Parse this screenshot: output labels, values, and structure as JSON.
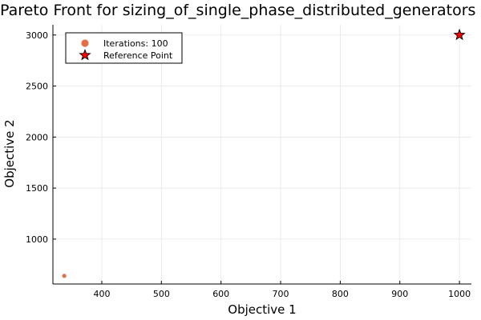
{
  "chart_data": {
    "type": "scatter",
    "title": "Pareto Front for sizing_of_single_phase_distributed_generators",
    "xlabel": "Objective 1",
    "ylabel": "Objective 2",
    "xlim": [
      318,
      1020
    ],
    "ylim": [
      560,
      3100
    ],
    "xticks": [
      400,
      500,
      600,
      700,
      800,
      900,
      1000
    ],
    "yticks": [
      1000,
      1500,
      2000,
      2500,
      3000
    ],
    "grid": true,
    "legend_position": "top-left",
    "series": [
      {
        "name": "Iterations: 100",
        "marker": "circle",
        "color": "#e26f46",
        "points": [
          {
            "x": 337,
            "y": 640
          }
        ]
      },
      {
        "name": "Reference Point",
        "marker": "star",
        "color": "#ff0000",
        "points": [
          {
            "x": 1000,
            "y": 3000
          }
        ]
      }
    ]
  }
}
